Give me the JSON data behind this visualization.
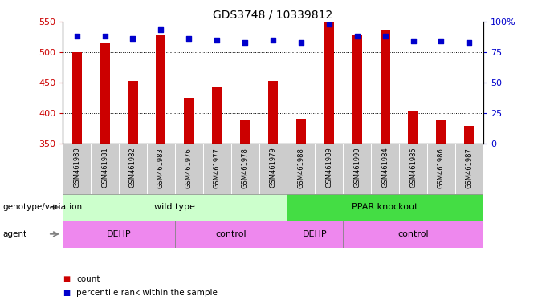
{
  "title": "GDS3748 / 10339812",
  "samples": [
    "GSM461980",
    "GSM461981",
    "GSM461982",
    "GSM461983",
    "GSM461976",
    "GSM461977",
    "GSM461978",
    "GSM461979",
    "GSM461988",
    "GSM461989",
    "GSM461990",
    "GSM461984",
    "GSM461985",
    "GSM461986",
    "GSM461987"
  ],
  "counts": [
    500,
    515,
    452,
    528,
    425,
    443,
    388,
    452,
    390,
    548,
    528,
    536,
    402,
    388,
    378
  ],
  "percentile_ranks": [
    88,
    88,
    86,
    93,
    86,
    85,
    83,
    85,
    83,
    98,
    88,
    88,
    84,
    84,
    83
  ],
  "y_min": 350,
  "y_max": 550,
  "y_ticks": [
    350,
    400,
    450,
    500,
    550
  ],
  "y2_ticks": [
    0,
    25,
    50,
    75,
    100
  ],
  "bar_color": "#cc0000",
  "dot_color": "#0000cc",
  "genotype_wild_color": "#ccffcc",
  "genotype_ko_color": "#44dd44",
  "agent_color": "#ee88ee",
  "legend_count_color": "#cc0000",
  "legend_dot_color": "#0000cc",
  "tick_label_bg": "#cccccc",
  "agent_groups": [
    {
      "label": "DEHP",
      "start": 0,
      "end": 3
    },
    {
      "label": "control",
      "start": 4,
      "end": 7
    },
    {
      "label": "DEHP",
      "start": 8,
      "end": 9
    },
    {
      "label": "control",
      "start": 10,
      "end": 14
    }
  ]
}
